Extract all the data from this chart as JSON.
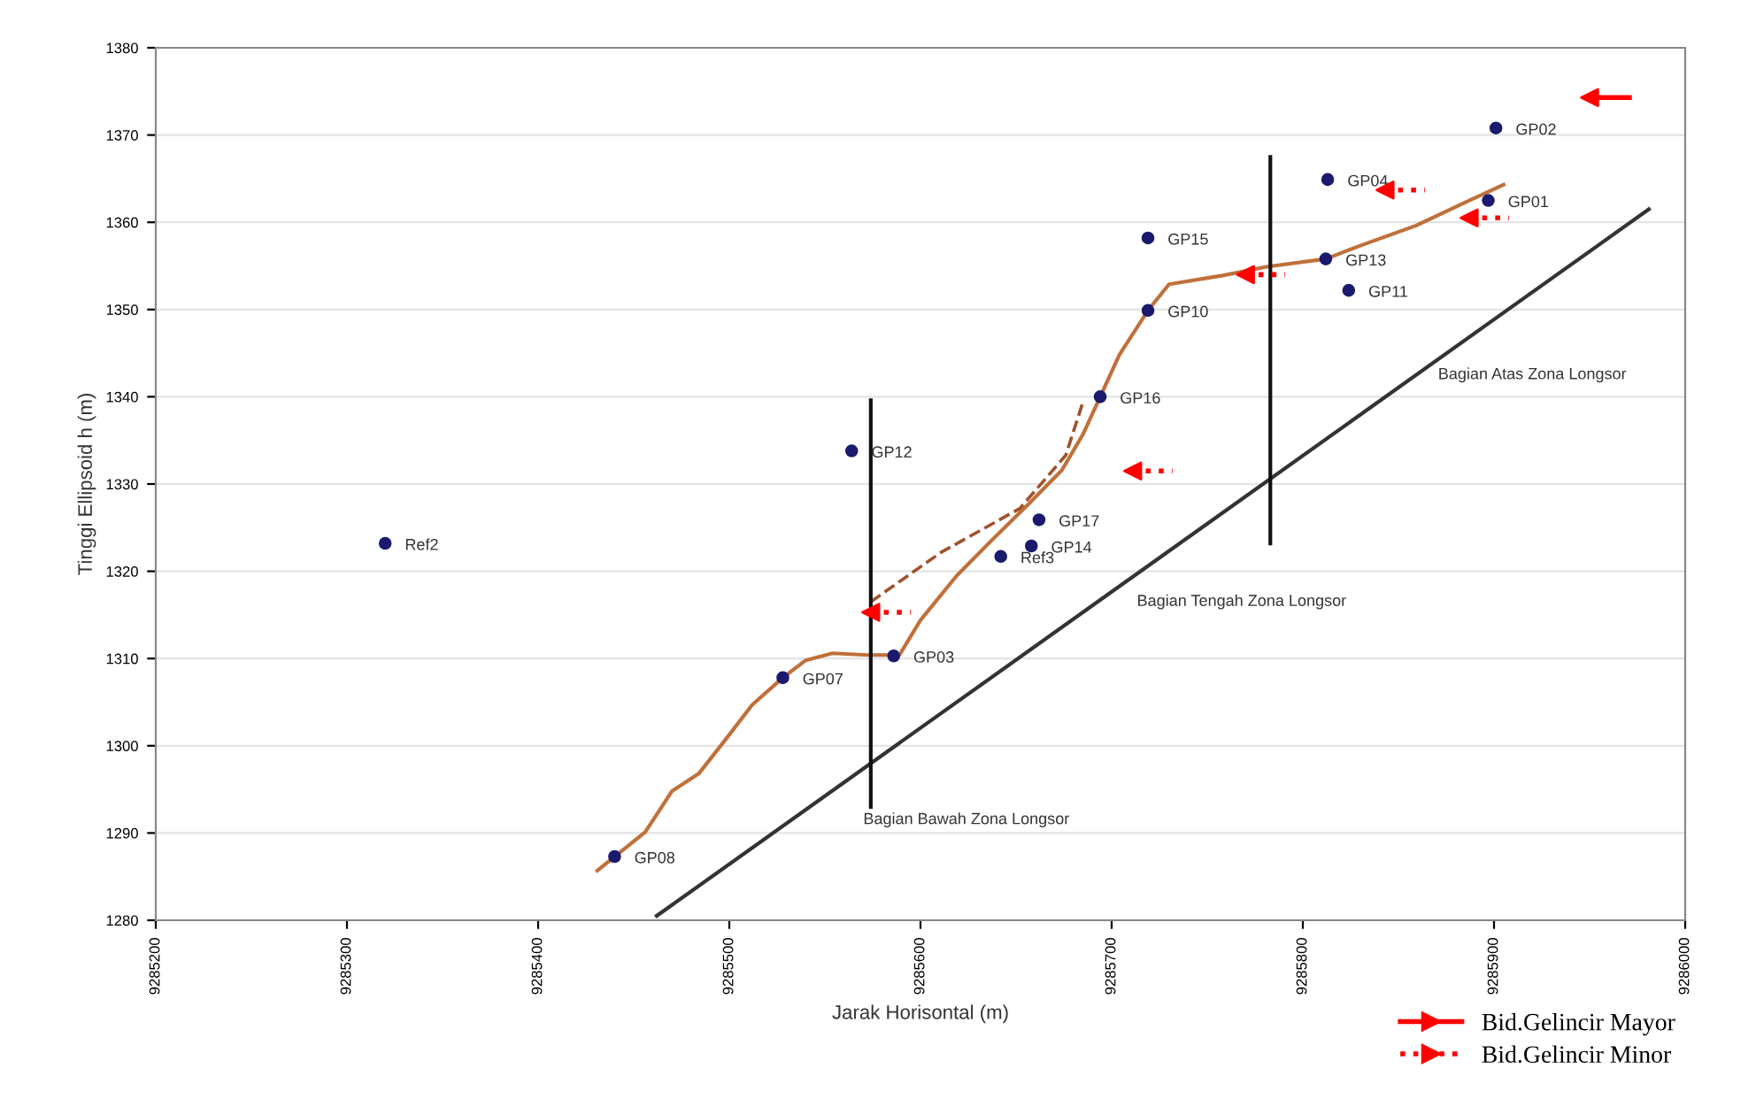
{
  "chart_data": {
    "type": "scatter",
    "xlabel": "Jarak Horisontal (m)",
    "ylabel": "Tinggi Ellipsoid h (m)",
    "xlim": [
      9285200,
      9286000
    ],
    "xticks": [
      9285200,
      9285300,
      9285400,
      9285500,
      9285600,
      9285700,
      9285800,
      9285900,
      9286000
    ],
    "ylim": [
      1280,
      1380
    ],
    "yticks": [
      1280,
      1290,
      1300,
      1310,
      1320,
      1330,
      1340,
      1350,
      1360,
      1370,
      1380
    ],
    "grid": "y",
    "legend": "bottom right",
    "series": [
      {
        "type": "line",
        "color": "#c0703a",
        "line_style": "solid",
        "x": [
          9285431,
          9285440,
          9285456,
          9285470,
          9285484,
          9285498,
          9285512,
          9285528,
          9285540,
          9285554,
          9285572,
          9285589,
          9285600,
          9285619,
          9285637,
          9285656,
          9285674,
          9285685,
          9285694,
          9285704,
          9285719,
          9285730,
          9285758,
          9285781,
          9285812,
          9285831,
          9285859,
          9285887,
          9285905
        ],
        "values": [
          1285.7,
          1287.3,
          1290.1,
          1294.8,
          1296.8,
          1300.7,
          1304.7,
          1307.8,
          1309.8,
          1310.6,
          1310.4,
          1310.4,
          1314.4,
          1319.5,
          1323.5,
          1327.6,
          1331.6,
          1335.7,
          1340.0,
          1344.8,
          1349.9,
          1352.9,
          1353.9,
          1354.9,
          1355.8,
          1357.4,
          1359.6,
          1362.5,
          1364.3
        ]
      },
      {
        "type": "line",
        "color": "#a0522d",
        "line_style": "dashed",
        "x": [
          9285574,
          9285611,
          9285652,
          9285676,
          9285685
        ],
        "values": [
          1316.5,
          1322.2,
          1327.2,
          1333.3,
          1339.4
        ]
      },
      {
        "type": "line",
        "color": "#333333",
        "line_style": "solid",
        "x": [
          9285462,
          9285981
        ],
        "values": [
          1280.5,
          1361.5
        ]
      },
      {
        "type": "line",
        "color": "#111111",
        "line_style": "solid",
        "x": [
          9285574,
          9285574
        ],
        "values": [
          1339.6,
          1293.0
        ]
      },
      {
        "type": "line",
        "color": "#111111",
        "line_style": "solid",
        "x": [
          9285783,
          9285783
        ],
        "values": [
          1367.5,
          1323.2
        ]
      },
      {
        "marker": "circle",
        "color": "#1a1a6e",
        "x": [
          9285320,
          9285440,
          9285528,
          9285564,
          9285586,
          9285642,
          9285658,
          9285662,
          9285694,
          9285719,
          9285719,
          9285812,
          9285813,
          9285824,
          9285897,
          9285901
        ],
        "values": [
          1323.2,
          1287.3,
          1307.8,
          1333.8,
          1310.3,
          1321.7,
          1322.9,
          1325.9,
          1340.0,
          1349.9,
          1358.2,
          1355.8,
          1364.9,
          1352.2,
          1362.5,
          1370.8
        ]
      },
      {
        "marker": "triangle",
        "name": "Bid.Gelincir Mayor",
        "color": "#ff0000",
        "line_style": "solid",
        "x": [
          9285950
        ],
        "values": [
          1374.3
        ]
      },
      {
        "marker": "triangle",
        "name": "Bid.Gelincir Minor",
        "color": "#ff0000",
        "line_style": "dotted",
        "x": [
          9285574,
          9285711,
          9285770,
          9285843,
          9285887
        ],
        "values": [
          1315.3,
          1331.5,
          1354.0,
          1363.7,
          1360.5
        ]
      }
    ],
    "annotations": [
      {
        "text": "Ref2",
        "x": 9285320,
        "y": 1323.2
      },
      {
        "text": "GP08",
        "x": 9285440,
        "y": 1287.3
      },
      {
        "text": "GP07",
        "x": 9285528,
        "y": 1307.8
      },
      {
        "text": "GP12",
        "x": 9285564,
        "y": 1333.8
      },
      {
        "text": "GP03",
        "x": 9285586,
        "y": 1310.3
      },
      {
        "text": "Ref3",
        "x": 9285642,
        "y": 1321.7
      },
      {
        "text": "GP14",
        "x": 9285658,
        "y": 1322.9
      },
      {
        "text": "GP17",
        "x": 9285662,
        "y": 1325.9
      },
      {
        "text": "GP16",
        "x": 9285694,
        "y": 1340.0
      },
      {
        "text": "GP10",
        "x": 9285719,
        "y": 1349.9
      },
      {
        "text": "GP15",
        "x": 9285719,
        "y": 1358.2
      },
      {
        "text": "GP13",
        "x": 9285812,
        "y": 1355.8
      },
      {
        "text": "GP04",
        "x": 9285813,
        "y": 1364.9
      },
      {
        "text": "GP11",
        "x": 9285824,
        "y": 1352.2
      },
      {
        "text": "GP01",
        "x": 9285897,
        "y": 1362.5
      },
      {
        "text": "GP02",
        "x": 9285901,
        "y": 1370.8
      },
      "Bagian Bawah Zona Longsor",
      "Bagian Tengah Zona Longsor",
      "Bagian Atas Zona Longsor"
    ]
  }
}
